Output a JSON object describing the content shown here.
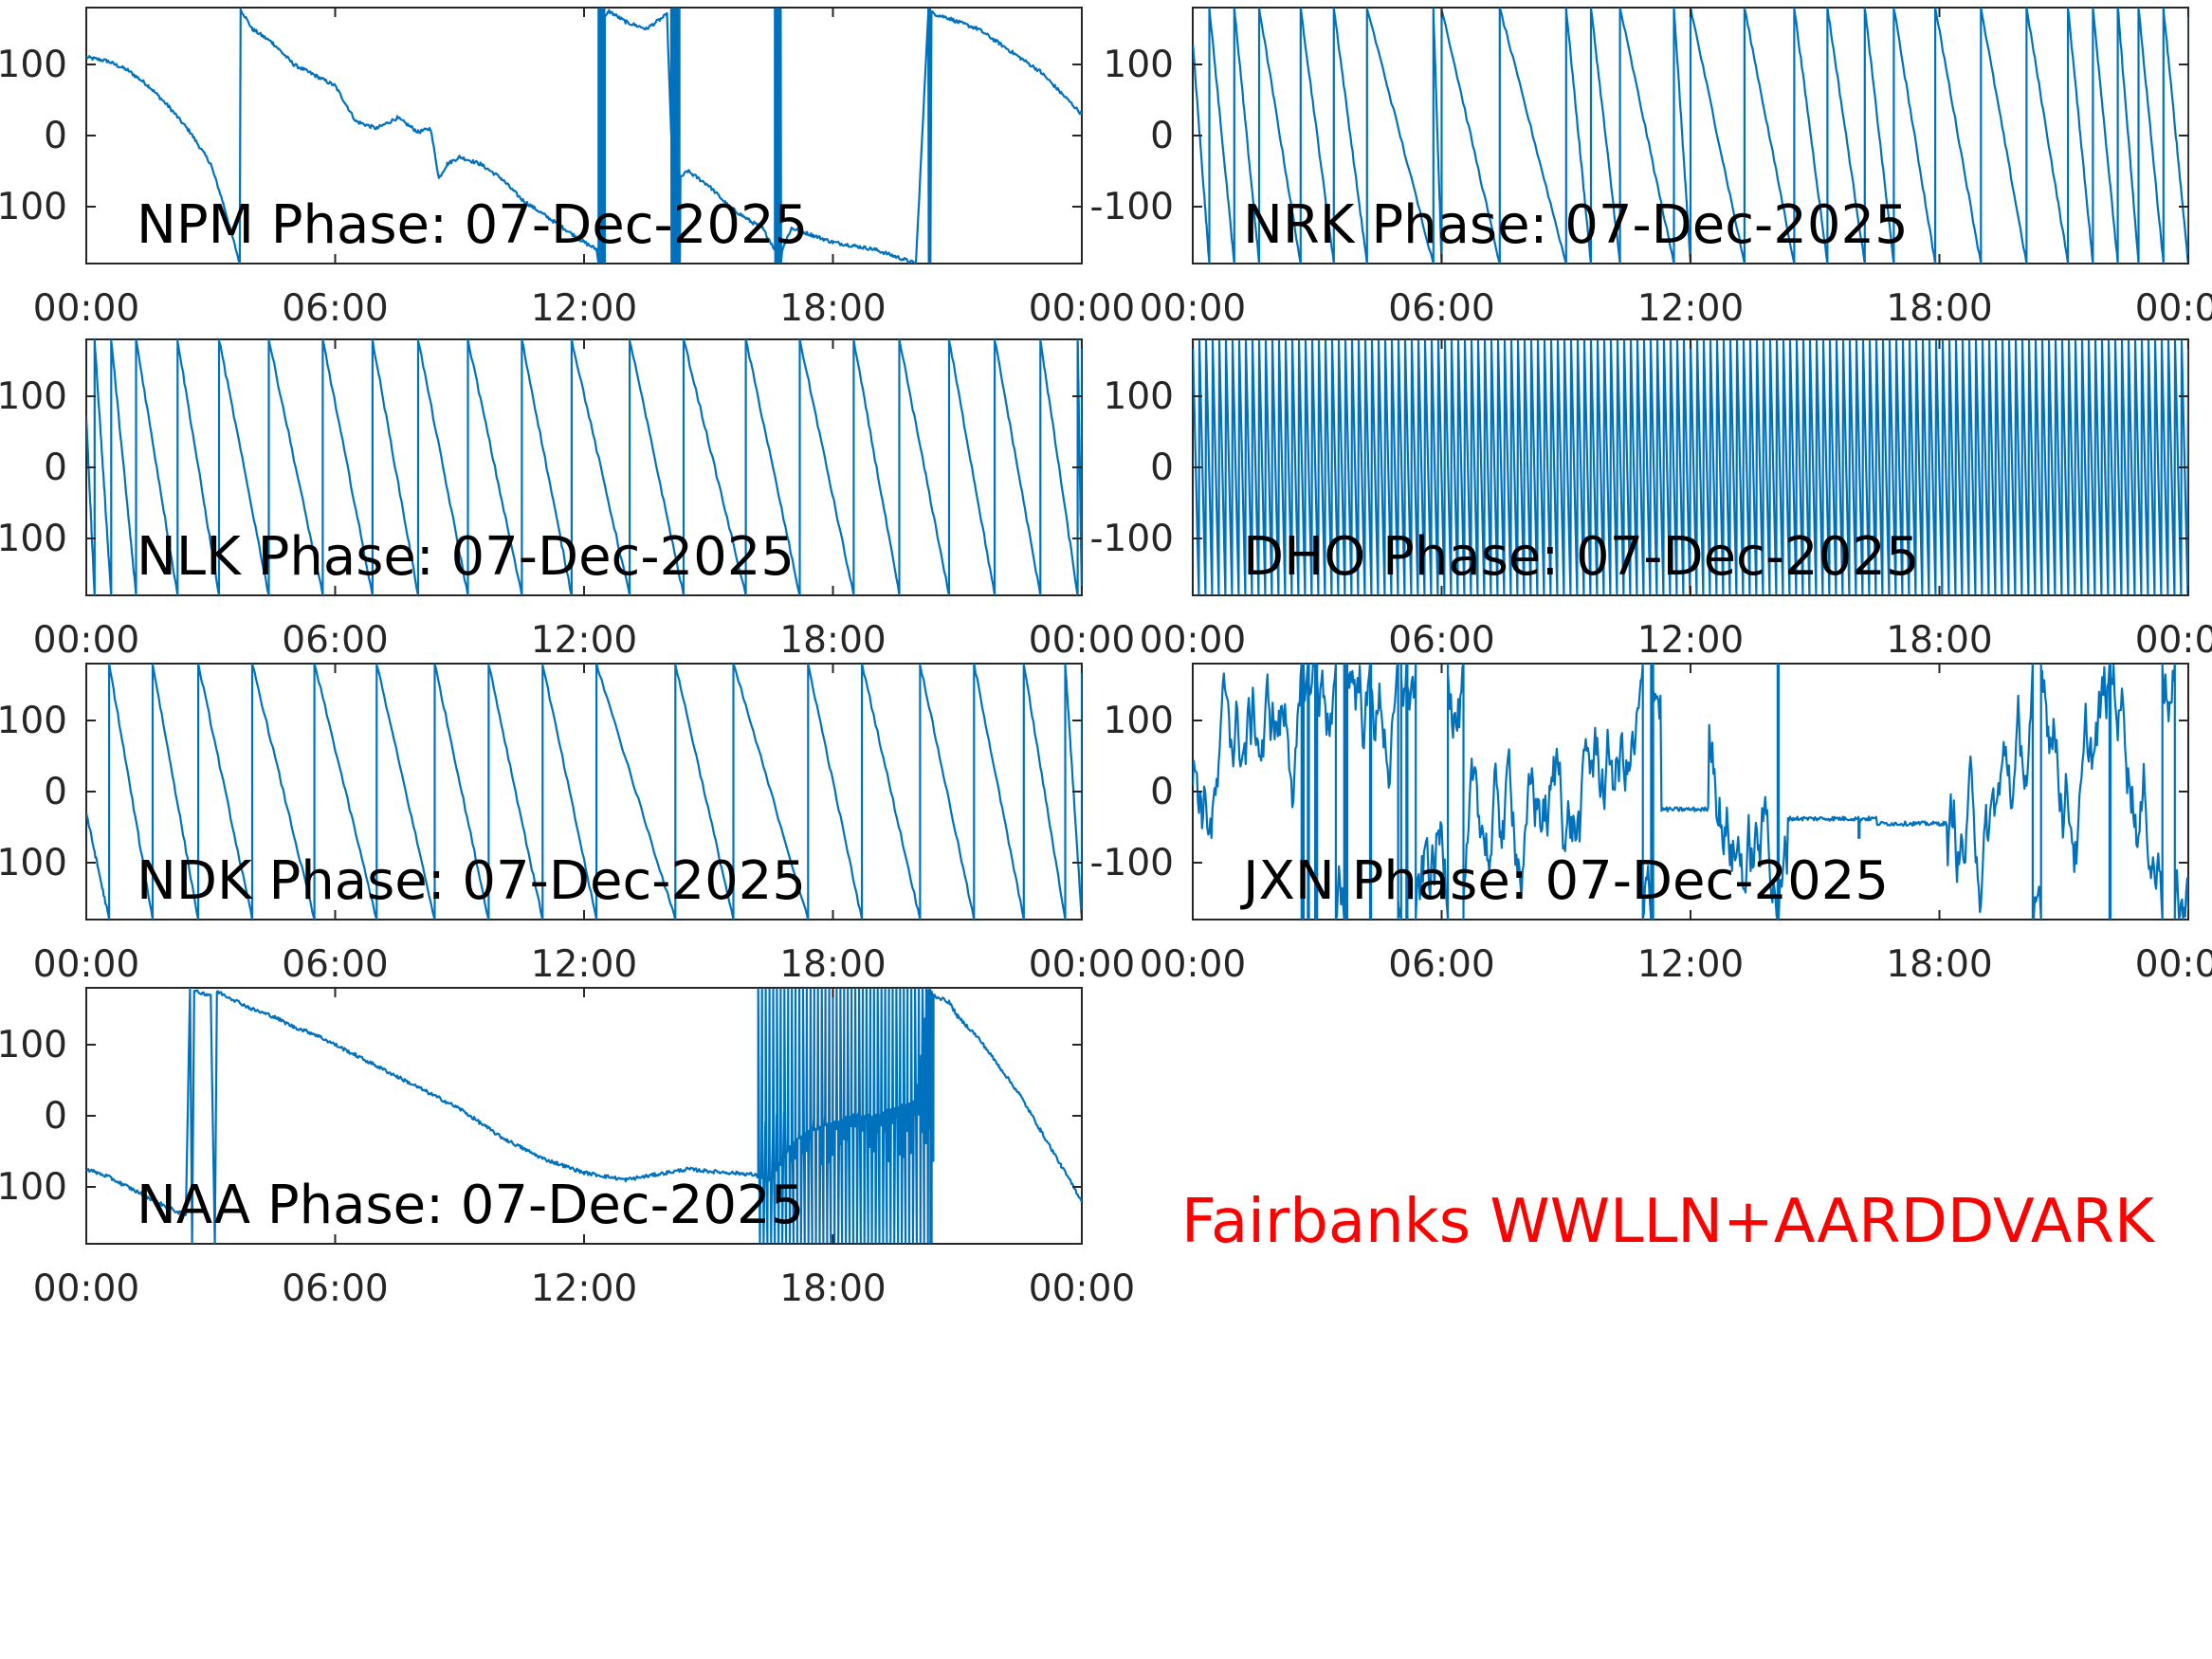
{
  "colors": {
    "series": "#0072BD",
    "axes": "#262626",
    "site_label": "#FF0000"
  },
  "site_label": "Fairbanks WWLLN+AARDDVARK",
  "chart_data": [
    {
      "type": "line",
      "title": "NPM Phase: 07-Dec-2025",
      "xlim": [
        0,
        24
      ],
      "ylim": [
        -180,
        180
      ],
      "yticks": [
        100,
        0,
        -100
      ],
      "ytick_labels": [
        "100",
        "0",
        "-100"
      ],
      "xticks": [
        0,
        6,
        12,
        18,
        24
      ],
      "xtick_labels": [
        "00:00",
        "06:00",
        "12:00",
        "18:00",
        "00:00"
      ],
      "series": [
        {
          "x": [
            0,
            0.5,
            1,
            1.5,
            2,
            2.5,
            3,
            3.3,
            3.7,
            3.72,
            4,
            4.5,
            5,
            5.5,
            6,
            6.5,
            7,
            7.5,
            8,
            8.3,
            8.5,
            8.7,
            9,
            9.5,
            10,
            10.5,
            11,
            11.5,
            12,
            12.3,
            12.35,
            12.5,
            12.6,
            13,
            13.5,
            14,
            14.2,
            14.3,
            14.5,
            15,
            15.5,
            16,
            16.3,
            16.6,
            16.7,
            17,
            17.5,
            18,
            18.5,
            19,
            19.5,
            20,
            20.3,
            20.5,
            20.8,
            21,
            21.5,
            22,
            22.5,
            23,
            23.5,
            24
          ],
          "y": [
            110,
            105,
            92,
            70,
            40,
            5,
            -40,
            -95,
            -180,
            178,
            150,
            130,
            100,
            85,
            70,
            20,
            10,
            25,
            5,
            10,
            -60,
            -40,
            -30,
            -40,
            -60,
            -90,
            -110,
            -130,
            -150,
            -160,
            -180,
            165,
            175,
            160,
            150,
            170,
            -170,
            -60,
            -50,
            -70,
            -100,
            -120,
            -130,
            -160,
            -170,
            -130,
            -140,
            -150,
            -155,
            -160,
            -170,
            -180,
            175,
            170,
            165,
            160,
            150,
            130,
            110,
            90,
            60,
            30
          ]
        }
      ]
    },
    {
      "type": "line",
      "title": "NRK Phase: 07-Dec-2025",
      "xlim": [
        0,
        24
      ],
      "ylim": [
        -180,
        180
      ],
      "yticks": [
        100,
        0,
        -100
      ],
      "ytick_labels": [
        "100",
        "0",
        "-100"
      ],
      "xticks": [
        0,
        6,
        12,
        18,
        24
      ],
      "xtick_labels": [
        "00:00",
        "06:00",
        "12:00",
        "18:00",
        "00:00"
      ],
      "series": [
        {
          "x": [
            0,
            0.4,
            1.0,
            1.6,
            2.6,
            3.4,
            4.2,
            5.8,
            6.0,
            7.4,
            9.0,
            9.6,
            10.3,
            11.6,
            12.0,
            13.3,
            14.5,
            15.3,
            16.2,
            16.9,
            17.9,
            19.0,
            20.1,
            21.1,
            21.7,
            22.3,
            22.8,
            23.4,
            24.0
          ],
          "y": [
            130,
            90,
            0,
            -180,
            180,
            0,
            -180,
            180,
            -180,
            180,
            -180,
            180,
            -180,
            180,
            -180,
            180,
            -180,
            180,
            -180,
            180,
            -180,
            180,
            -180,
            180,
            -180,
            180,
            -180,
            180,
            130
          ]
        }
      ]
    },
    {
      "type": "line",
      "title": "NLK Phase: 07-Dec-2025",
      "xlim": [
        0,
        24
      ],
      "ylim": [
        -180,
        180
      ],
      "yticks": [
        100,
        0,
        -100
      ],
      "ytick_labels": [
        "100",
        "0",
        "-100"
      ],
      "xticks": [
        0,
        6,
        12,
        18,
        24
      ],
      "xtick_labels": [
        "00:00",
        "06:00",
        "12:00",
        "18:00",
        "00:00"
      ],
      "series": [
        {
          "x": [
            0,
            0.2,
            0.6,
            1.2,
            2.2,
            3.2,
            4.4,
            5.7,
            6.9,
            8.0,
            9.2,
            10.5,
            11.7,
            13.1,
            14.4,
            15.9,
            17.2,
            18.5,
            19.6,
            20.8,
            21.9,
            23.0,
            23.9,
            24.0
          ],
          "y": [
            70,
            20,
            -20,
            -180,
            -180,
            -180,
            -180,
            -180,
            -180,
            -180,
            -180,
            -180,
            -180,
            -180,
            -180,
            -180,
            -180,
            -180,
            -180,
            -180,
            -180,
            -180,
            -180,
            40
          ]
        }
      ]
    },
    {
      "type": "line",
      "title": "DHO Phase: 07-Dec-2025",
      "xlim": [
        0,
        24
      ],
      "ylim": [
        -180,
        180
      ],
      "yticks": [
        100,
        0,
        -100
      ],
      "ytick_labels": [
        "100",
        "0",
        "-100"
      ],
      "xticks": [
        0,
        6,
        12,
        18,
        24
      ],
      "xtick_labels": [
        "00:00",
        "06:00",
        "12:00",
        "18:00",
        "00:00"
      ],
      "series": [
        {
          "x": [
            0,
            24
          ],
          "y": [
            180,
            -180
          ]
        }
      ]
    },
    {
      "type": "line",
      "title": "NDK Phase: 07-Dec-2025",
      "xlim": [
        0,
        24
      ],
      "ylim": [
        -180,
        180
      ],
      "yticks": [
        100,
        0,
        -100
      ],
      "ytick_labels": [
        "100",
        "0",
        "-100"
      ],
      "xticks": [
        0,
        6,
        12,
        18,
        24
      ],
      "xtick_labels": [
        "00:00",
        "06:00",
        "12:00",
        "18:00",
        "00:00"
      ],
      "series": [
        {
          "x": [
            0,
            0.55,
            1.6,
            2.7,
            4.0,
            5.5,
            7.0,
            8.4,
            9.7,
            11.0,
            12.3,
            14.2,
            15.6,
            17.4,
            18.7,
            20.1,
            21.4,
            22.6,
            23.6,
            24.0
          ],
          "y": [
            -30,
            -180,
            -180,
            -180,
            -180,
            -180,
            -180,
            -180,
            -180,
            -180,
            -180,
            -180,
            -180,
            -180,
            -180,
            -180,
            -180,
            -180,
            -180,
            170
          ]
        }
      ]
    },
    {
      "type": "line",
      "title": "JXN Phase: 07-Dec-2025",
      "xlim": [
        0,
        24
      ],
      "ylim": [
        -180,
        180
      ],
      "yticks": [
        100,
        0,
        -100
      ],
      "ytick_labels": [
        "100",
        "0",
        "-100"
      ],
      "xticks": [
        0,
        6,
        12,
        18,
        24
      ],
      "xtick_labels": [
        "00:00",
        "06:00",
        "12:00",
        "18:00",
        "00:00"
      ],
      "series": [
        {
          "x": [
            0,
            11.3,
            12.5,
            13.4,
            14.0,
            14.4,
            16.2,
            16.6,
            17.4,
            18.0,
            18.2,
            24.0
          ],
          "y": [
            0,
            -20,
            -30,
            -30,
            -30,
            -40,
            -40,
            -50,
            -45,
            -50,
            -60,
            0
          ]
        }
      ]
    },
    {
      "type": "line",
      "title": "NAA Phase: 07-Dec-2025",
      "xlim": [
        0,
        24
      ],
      "ylim": [
        -180,
        180
      ],
      "yticks": [
        100,
        0,
        -100
      ],
      "ytick_labels": [
        "100",
        "0",
        "-100"
      ],
      "xticks": [
        0,
        6,
        12,
        18,
        24
      ],
      "xtick_labels": [
        "00:00",
        "06:00",
        "12:00",
        "18:00",
        "00:00"
      ],
      "series": [
        {
          "x": [
            0,
            0.5,
            1,
            1.5,
            2,
            2.4,
            2.5,
            2.55,
            2.6,
            3,
            3.1,
            3.15,
            3.5,
            4,
            4.5,
            5,
            5.5,
            6,
            6.5,
            7,
            7.5,
            8,
            8.5,
            9,
            9.5,
            10,
            10.5,
            11,
            11.5,
            12,
            12.5,
            13,
            13.5,
            14,
            14.5,
            15,
            15.5,
            16,
            16.2,
            16.5,
            17,
            17.5,
            18,
            18.5,
            19,
            19.5,
            20,
            20.3,
            20.4,
            20.8,
            21,
            21.5,
            22,
            22.5,
            23,
            23.5,
            24
          ],
          "y": [
            -75,
            -85,
            -100,
            -115,
            -130,
            -140,
            180,
            -180,
            175,
            170,
            -180,
            175,
            165,
            150,
            140,
            125,
            115,
            100,
            85,
            70,
            55,
            40,
            25,
            10,
            -10,
            -30,
            -45,
            -60,
            -70,
            -80,
            -85,
            -90,
            -85,
            -80,
            -75,
            -78,
            -80,
            -82,
            -85,
            -90,
            -40,
            -20,
            -10,
            0,
            0,
            10,
            20,
            175,
            170,
            160,
            140,
            110,
            70,
            30,
            -20,
            -70,
            -120
          ]
        }
      ]
    }
  ]
}
